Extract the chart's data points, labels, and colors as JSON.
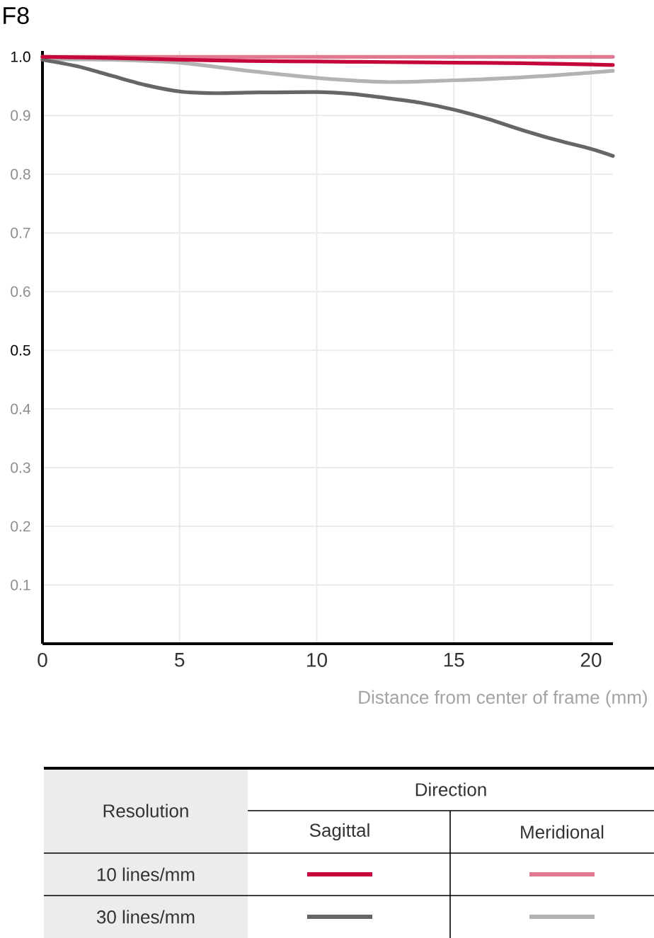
{
  "chart_data": {
    "type": "line",
    "title": "F8",
    "xlabel": "Distance from center of frame (mm)",
    "xlim": [
      0,
      20.8
    ],
    "ylim": [
      0,
      1.01
    ],
    "xticks": [
      0,
      5,
      10,
      15,
      20
    ],
    "yticks": [
      0.1,
      0.2,
      0.3,
      0.4,
      0.5,
      0.6,
      0.7,
      0.8,
      0.9,
      {
        "value": 1,
        "label": "1.0"
      }
    ],
    "grid": true,
    "series": [
      {
        "color": "#c4063a",
        "x": [
          0,
          2.5,
          5,
          7.5,
          10,
          12.5,
          15,
          17.5,
          20,
          20.8
        ],
        "values": [
          1.0,
          0.998,
          0.995,
          0.993,
          0.992,
          0.991,
          0.99,
          0.989,
          0.987,
          0.986
        ]
      },
      {
        "color": "#e07891",
        "x": [
          0,
          5,
          10,
          15,
          20,
          20.8
        ],
        "values": [
          1.0,
          1.0,
          1.0,
          1.0,
          1.0,
          1.0
        ]
      },
      {
        "color": "#666666",
        "x": [
          0,
          1.25,
          2.5,
          3.75,
          5,
          6.25,
          7.5,
          10,
          11.25,
          12.5,
          13.75,
          15,
          16.25,
          17.5,
          18.75,
          20,
          20.8
        ],
        "values": [
          0.995,
          0.984,
          0.968,
          0.952,
          0.941,
          0.938,
          0.939,
          0.94,
          0.937,
          0.93,
          0.922,
          0.91,
          0.894,
          0.875,
          0.858,
          0.843,
          0.831
        ]
      },
      {
        "color": "#b3b3b3",
        "x": [
          0,
          2.5,
          5,
          7.5,
          10,
          12.5,
          15,
          17.5,
          20,
          20.8
        ],
        "values": [
          0.996,
          0.995,
          0.99,
          0.976,
          0.964,
          0.957,
          0.96,
          0.965,
          0.973,
          0.976
        ]
      }
    ],
    "annotations": [
      "Resolution",
      "Direction",
      "Sagittal",
      "Meridional",
      "10 lines/mm",
      "30 lines/mm"
    ]
  }
}
